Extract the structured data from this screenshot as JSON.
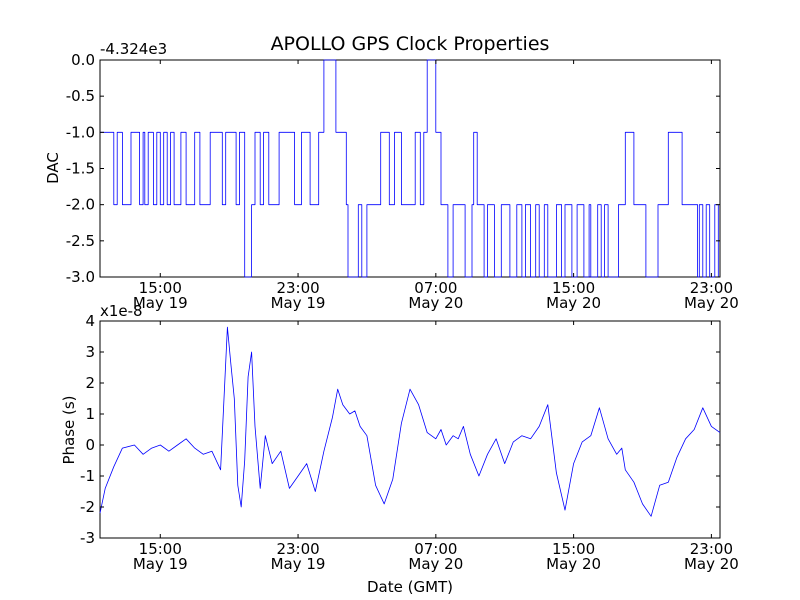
{
  "chart_data": {
    "title": "APOLLO GPS Clock Properties",
    "colors": {
      "line": "#0000ff",
      "axes": "#000000",
      "background": "#ffffff"
    },
    "x_ticks": [
      {
        "hour": 8,
        "time": "15:00",
        "date": "May 19"
      },
      {
        "hour": 16,
        "time": "23:00",
        "date": "May 19"
      },
      {
        "hour": 24,
        "time": "07:00",
        "date": "May 20"
      },
      {
        "hour": 32,
        "time": "15:00",
        "date": "May 20"
      },
      {
        "hour": 40,
        "time": "23:00",
        "date": "May 20"
      }
    ],
    "x_unit": "hours since 07:00 May 19 (GMT)",
    "xlim": [
      4.5,
      40.5
    ],
    "xlabel": "Date (GMT)",
    "panels": [
      {
        "type": "line",
        "step": true,
        "ylabel": "DAC",
        "offset_text": "-4.324e3",
        "ylim": [
          -3.0,
          0.0
        ],
        "yticks": [
          0.0,
          -0.5,
          -1.0,
          -1.5,
          -2.0,
          -2.5,
          -3.0
        ],
        "ytick_labels": [
          "0.0",
          "-0.5",
          "-1.0",
          "-1.5",
          "-2.0",
          "-2.5",
          "-3.0"
        ],
        "series": [
          {
            "name": "DAC",
            "x": [
              4.5,
              5.3,
              5.5,
              5.8,
              6.3,
              6.8,
              7.0,
              7.1,
              7.3,
              7.6,
              7.8,
              8.0,
              8.2,
              8.4,
              8.6,
              8.8,
              9.2,
              9.5,
              10.0,
              10.3,
              10.9,
              11.6,
              11.8,
              12.4,
              12.6,
              12.9,
              13.3,
              13.5,
              13.8,
              14.0,
              14.3,
              14.9,
              15.8,
              16.2,
              16.7,
              17.2,
              17.5,
              18.2,
              18.8,
              18.9,
              19.5,
              19.7,
              20.0,
              20.8,
              21.3,
              21.6,
              22.0,
              22.8,
              23.1,
              23.3,
              23.5,
              24.0,
              24.3,
              24.7,
              25.0,
              25.7,
              26.1,
              26.2,
              26.4,
              26.8,
              27.0,
              27.4,
              27.8,
              28.3,
              28.7,
              29.0,
              29.2,
              29.5,
              29.8,
              30.0,
              30.3,
              30.5,
              31.0,
              31.3,
              31.5,
              31.9,
              32.2,
              32.6,
              32.9,
              33.0,
              33.4,
              33.6,
              33.8,
              34.0,
              34.6,
              35.0,
              35.5,
              36.2,
              36.9,
              37.5,
              38.3,
              39.2,
              39.3,
              39.5,
              39.7,
              39.9,
              40.2,
              40.4
            ],
            "y": [
              -1,
              -2,
              -1,
              -2,
              -1,
              -2,
              -1,
              -2,
              -1,
              -2,
              -1,
              -2,
              -1,
              -2,
              -1,
              -2,
              -1,
              -2,
              -1,
              -2,
              -1,
              -2,
              -1,
              -2,
              -1,
              -3,
              -2,
              -1,
              -2,
              -1,
              -2,
              -1,
              -2,
              -1,
              -2,
              -1,
              0,
              -1,
              -2,
              -3,
              -2,
              -3,
              -2,
              -1,
              -2,
              -1,
              -2,
              -1,
              -2,
              -1,
              0,
              -1,
              -2,
              -3,
              -2,
              -3,
              -2,
              -1,
              -2,
              -3,
              -2,
              -3,
              -2,
              -3,
              -2,
              -3,
              -2,
              -3,
              -2,
              -3,
              -2,
              -3,
              -2,
              -3,
              -2,
              -3,
              -2,
              -3,
              -2,
              -3,
              -2,
              -3,
              -2,
              -3,
              -2,
              -1,
              -2,
              -3,
              -2,
              -1,
              -2,
              -3,
              -2,
              -3,
              -2,
              -3,
              -2,
              -3
            ]
          }
        ]
      },
      {
        "type": "line",
        "ylabel": "Phase (s)",
        "offset_text": "x1e-8",
        "ylim": [
          -3,
          4
        ],
        "yticks": [
          4,
          3,
          2,
          1,
          0,
          -1,
          -2,
          -3
        ],
        "ytick_labels": [
          "4",
          "3",
          "2",
          "1",
          "0",
          "-1",
          "-2",
          "-3"
        ],
        "series": [
          {
            "name": "Phase",
            "x": [
              4.5,
              4.8,
              5.3,
              5.8,
              6.5,
              7.0,
              7.5,
              8.0,
              8.5,
              9.0,
              9.5,
              10.0,
              10.5,
              11.0,
              11.5,
              11.9,
              12.1,
              12.3,
              12.5,
              12.7,
              12.9,
              13.1,
              13.3,
              13.5,
              13.8,
              14.1,
              14.5,
              15.0,
              15.5,
              16.0,
              16.5,
              17.0,
              17.5,
              18.0,
              18.3,
              18.6,
              19.0,
              19.3,
              19.6,
              20.0,
              20.5,
              21.0,
              21.5,
              22.0,
              22.5,
              23.0,
              23.5,
              24.0,
              24.3,
              24.6,
              25.0,
              25.3,
              25.6,
              26.0,
              26.5,
              27.0,
              27.5,
              28.0,
              28.5,
              29.0,
              29.5,
              30.0,
              30.5,
              31.0,
              31.5,
              32.0,
              32.5,
              33.0,
              33.5,
              34.0,
              34.5,
              34.8,
              35.0,
              35.5,
              36.0,
              36.5,
              37.0,
              37.5,
              38.0,
              38.5,
              39.0,
              39.5,
              40.0,
              40.5
            ],
            "y": [
              -2.2,
              -1.4,
              -0.7,
              -0.1,
              0.0,
              -0.3,
              -0.1,
              0.0,
              -0.2,
              0.0,
              0.2,
              -0.1,
              -0.3,
              -0.2,
              -0.8,
              3.8,
              2.6,
              1.5,
              -1.3,
              -2.0,
              -0.5,
              2.2,
              3.0,
              0.6,
              -1.4,
              0.3,
              -0.6,
              -0.2,
              -1.4,
              -1.0,
              -0.6,
              -1.5,
              -0.2,
              0.9,
              1.8,
              1.3,
              1.0,
              1.1,
              0.6,
              0.3,
              -1.3,
              -1.9,
              -1.1,
              0.7,
              1.8,
              1.3,
              0.4,
              0.2,
              0.5,
              0.0,
              0.3,
              0.2,
              0.6,
              -0.3,
              -1.0,
              -0.3,
              0.2,
              -0.6,
              0.1,
              0.3,
              0.2,
              0.6,
              1.3,
              -0.9,
              -2.1,
              -0.6,
              0.1,
              0.3,
              1.2,
              0.2,
              -0.3,
              -0.1,
              -0.8,
              -1.2,
              -1.9,
              -2.3,
              -1.3,
              -1.2,
              -0.4,
              0.2,
              0.5,
              1.2,
              0.6,
              0.4
            ]
          }
        ]
      }
    ]
  }
}
